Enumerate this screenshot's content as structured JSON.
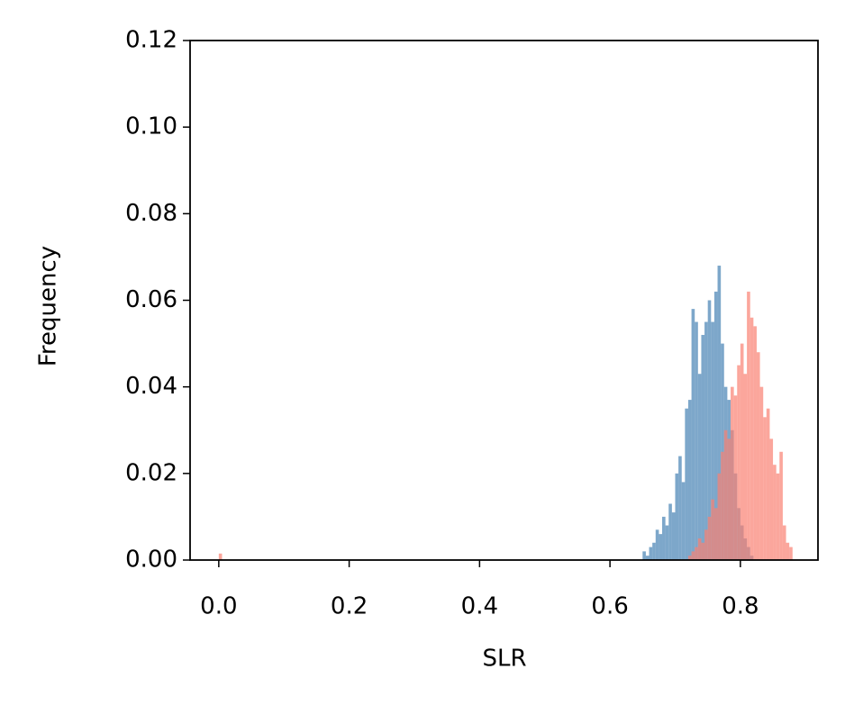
{
  "chart_data": {
    "type": "histogram",
    "xlabel": "SLR",
    "ylabel": "Frequency",
    "xlim": [
      -0.044,
      0.919
    ],
    "ylim": [
      0,
      0.12
    ],
    "xticks": [
      {
        "value": 0,
        "label": "0.0"
      },
      0.2,
      0.4,
      0.6,
      0.8
    ],
    "yticks": [
      {
        "value": 0,
        "label": "0.00"
      },
      0.02,
      0.04,
      0.06,
      0.08,
      {
        "value": 0.1,
        "label": "0.10"
      },
      0.12
    ],
    "alpha": 0.7,
    "series": [
      {
        "color": "#4682b4",
        "bins": [
          0.65,
          0.655,
          0.66,
          0.665,
          0.67,
          0.675,
          0.68,
          0.685,
          0.69,
          0.695,
          0.7,
          0.705,
          0.71,
          0.715,
          0.72,
          0.725,
          0.73,
          0.735,
          0.74,
          0.745,
          0.75,
          0.755,
          0.76,
          0.765,
          0.77,
          0.775,
          0.78,
          0.785,
          0.79,
          0.795,
          0.8,
          0.805,
          0.81,
          0.815,
          0.82
        ],
        "values": [
          0.002,
          0.001,
          0.003,
          0.004,
          0.007,
          0.006,
          0.01,
          0.008,
          0.013,
          0.011,
          0.02,
          0.024,
          0.018,
          0.035,
          0.037,
          0.058,
          0.055,
          0.043,
          0.052,
          0.055,
          0.06,
          0.055,
          0.062,
          0.068,
          0.05,
          0.04,
          0.037,
          0.03,
          0.02,
          0.012,
          0.008,
          0.005,
          0.003,
          0.001
        ]
      },
      {
        "color": "#fa8072",
        "bins": [
          0,
          0.005,
          0.72,
          0.725,
          0.73,
          0.735,
          0.74,
          0.745,
          0.75,
          0.755,
          0.76,
          0.765,
          0.77,
          0.775,
          0.78,
          0.785,
          0.79,
          0.795,
          0.8,
          0.805,
          0.81,
          0.815,
          0.82,
          0.825,
          0.83,
          0.835,
          0.84,
          0.845,
          0.85,
          0.855,
          0.86,
          0.865,
          0.87,
          0.875,
          0.88
        ],
        "values": [
          0.0015,
          0,
          0.001,
          0.002,
          0.003,
          0.005,
          0.004,
          0.007,
          0.01,
          0.014,
          0.012,
          0.02,
          0.025,
          0.03,
          0.028,
          0.04,
          0.038,
          0.045,
          0.05,
          0.043,
          0.062,
          0.056,
          0.054,
          0.048,
          0.04,
          0.033,
          0.035,
          0.028,
          0.022,
          0.02,
          0.025,
          0.008,
          0.004,
          0.003
        ]
      }
    ]
  }
}
